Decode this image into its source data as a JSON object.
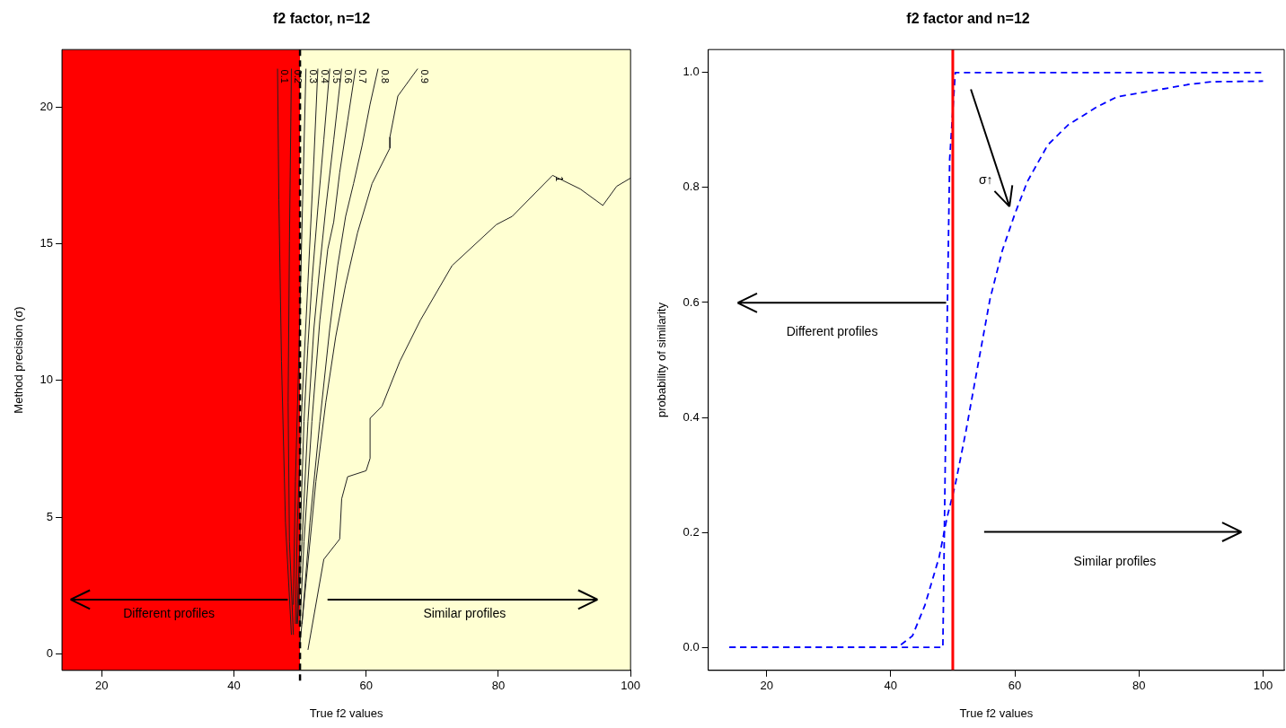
{
  "chart_data": [
    {
      "type": "line",
      "title": "f2 factor, n=12",
      "xlabel": "True f2 values",
      "ylabel": "Method precision (σ)",
      "xlim": [
        14,
        100
      ],
      "ylim": [
        -0.6,
        22.1
      ],
      "xticks": [
        20,
        40,
        60,
        80,
        100
      ],
      "yticks": [
        0,
        5,
        10,
        15,
        20
      ],
      "grid": false,
      "bands": [
        {
          "axis": "x",
          "from": 14,
          "to": 50,
          "color": "#ff0000"
        },
        {
          "axis": "x",
          "from": 50,
          "to": 100,
          "color": "#ffffd2"
        }
      ],
      "ref_lines": [
        {
          "axis": "x",
          "value": 50,
          "color": "#000000",
          "line_style": "dashed"
        }
      ],
      "series": [
        {
          "name": "0.1",
          "color": "#222222",
          "x": [
            46.6,
            46.8,
            47.2,
            47.8,
            48.7
          ],
          "values": [
            21.4,
            16.6,
            10.7,
            4.8,
            0.7
          ]
        },
        {
          "name": "0.2",
          "color": "#222222",
          "x": [
            48.7,
            48.4,
            48.2,
            48.4,
            49.0
          ],
          "values": [
            21.4,
            15.1,
            9.2,
            4.1,
            0.7
          ]
        },
        {
          "name": "0.3",
          "color": "#222222",
          "x": [
            50.9,
            50.4,
            49.8,
            49.3,
            49.0
          ],
          "values": [
            21.4,
            16.6,
            10.7,
            6.3,
            1.8
          ]
        },
        {
          "name": "0.4",
          "color": "#222222",
          "x": [
            52.7,
            52.1,
            51.2,
            50.3,
            49.6,
            49.3
          ],
          "values": [
            21.4,
            18.1,
            13.6,
            9.2,
            4.8,
            1.1
          ]
        },
        {
          "name": "0.5",
          "color": "#222222",
          "x": [
            54.5,
            53.6,
            52.7,
            51.8,
            51.2,
            50.6,
            50.0,
            49.5
          ],
          "values": [
            21.4,
            18.8,
            16.3,
            13.6,
            11.3,
            8.5,
            4.1,
            1.1
          ]
        },
        {
          "name": "0.6",
          "color": "#222222",
          "x": [
            56.3,
            55.1,
            53.9,
            53.0,
            52.1,
            51.2,
            50.3,
            49.6
          ],
          "values": [
            21.4,
            18.8,
            16.3,
            14.2,
            11.9,
            8.5,
            4.1,
            1.1
          ]
        },
        {
          "name": "0.7",
          "color": "#222222",
          "x": [
            58.4,
            57.2,
            56.0,
            55.1,
            54.2,
            53.0,
            51.8,
            50.6,
            50.0
          ],
          "values": [
            21.4,
            19.5,
            17.6,
            15.8,
            14.8,
            12.2,
            8.5,
            4.1,
            1.1
          ]
        },
        {
          "name": "0.8",
          "color": "#222222",
          "x": [
            61.8,
            60.6,
            59.4,
            58.1,
            56.9,
            55.7,
            54.5,
            53.0,
            51.5,
            50.3
          ],
          "values": [
            21.4,
            20.1,
            18.6,
            17.2,
            16.0,
            14.2,
            11.9,
            8.5,
            4.8,
            1.1
          ]
        },
        {
          "name": "0.9",
          "color": "#222222",
          "x": [
            67.8,
            64.8,
            63.6,
            63.6,
            60.9,
            58.7,
            56.9,
            55.4,
            53.9,
            52.4,
            50.9,
            50.0
          ],
          "values": [
            21.4,
            20.4,
            18.9,
            18.5,
            17.2,
            15.4,
            13.5,
            11.6,
            9.2,
            6.3,
            2.6,
            0.4
          ]
        },
        {
          "name": "1",
          "color": "#222222",
          "x": [
            51.2,
            53.6,
            56.0,
            56.3,
            57.2,
            60.0,
            60.6,
            60.6,
            62.4,
            65.1,
            68.2,
            73.0,
            79.7,
            82.1,
            88.2,
            92.4,
            95.8,
            97.9,
            100
          ],
          "values": [
            0.15,
            3.46,
            4.2,
            5.67,
            6.48,
            6.7,
            7.15,
            8.62,
            9.06,
            10.7,
            12.2,
            14.2,
            15.7,
            16.0,
            17.5,
            17.0,
            16.4,
            17.1,
            17.4
          ]
        }
      ],
      "annotations": [
        "Different profiles",
        "Similar profiles"
      ]
    },
    {
      "type": "line",
      "title": "f2 factor and n=12",
      "xlabel": "True f2 values",
      "ylabel": "probability of similarity",
      "xlim": [
        10.6,
        103.4
      ],
      "ylim": [
        -0.04,
        1.04
      ],
      "xticks": [
        20,
        40,
        60,
        80,
        100
      ],
      "yticks": [
        {
          "value": 0,
          "label": "0.0"
        },
        {
          "value": 0.2,
          "label": "0.2"
        },
        {
          "value": 0.4,
          "label": "0.4"
        },
        {
          "value": 0.6,
          "label": "0.6"
        },
        {
          "value": 0.8,
          "label": "0.8"
        },
        {
          "value": 1,
          "label": "1.0"
        }
      ],
      "grid": false,
      "line_style": "dashed",
      "ref_lines": [
        {
          "axis": "x",
          "value": 50,
          "color": "#ff0000",
          "line_style": "solid"
        }
      ],
      "series": [
        {
          "color": "#0000ff",
          "x": [
            14,
            48.4,
            49.0,
            49.5,
            50.4,
            100
          ],
          "values": [
            0,
            0,
            0.5,
            0.85,
            1.0,
            1.0
          ]
        },
        {
          "color": "#0000ff",
          "x": [
            14,
            41.1,
            43.5,
            45.5,
            47.8,
            49.1,
            50.4,
            52.1,
            54.1,
            56.0,
            58.0,
            60.0,
            62.0,
            65.3,
            68.6,
            73.2,
            76.5,
            80.5,
            87.8,
            91.7,
            100
          ],
          "values": [
            0,
            0,
            0.02,
            0.073,
            0.157,
            0.227,
            0.283,
            0.375,
            0.494,
            0.606,
            0.691,
            0.754,
            0.81,
            0.874,
            0.909,
            0.94,
            0.958,
            0.965,
            0.979,
            0.984,
            0.985
          ]
        }
      ],
      "annotations": [
        "σ↑",
        "Different profiles",
        "Similar profiles"
      ]
    }
  ]
}
